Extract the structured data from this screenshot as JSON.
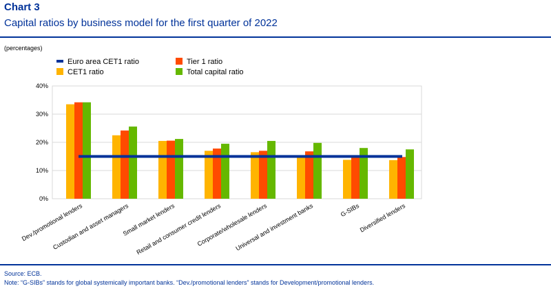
{
  "header": {
    "chart_label": "Chart 3",
    "title": "Capital ratios by business model for the first quarter of 2022",
    "units": "(percentages)"
  },
  "footer": {
    "source": "Source: ECB.",
    "note": "Note: “G-SIBs” stands for global systemically important banks. “Dev./promotional lenders” stands for Development/promotional lenders."
  },
  "colors": {
    "cet1": "#FFB400",
    "tier1": "#FF4B00",
    "total": "#65B800",
    "euro_area": "#003299",
    "brand": "#003299"
  },
  "chart_data": {
    "type": "bar",
    "categories": [
      "Dev./promotional lenders",
      "Custodian and asset managers",
      "Small market lenders",
      "Retail and consumer credit lenders",
      "Corporate/wholesale lenders",
      "Universal and investment banks",
      "G-SIBs",
      "Diversified lenders"
    ],
    "series": [
      {
        "name": "CET1 ratio",
        "color": "#FFB400",
        "values": [
          33.5,
          22.5,
          20.5,
          17.0,
          16.5,
          15.0,
          13.8,
          13.7
        ]
      },
      {
        "name": "Tier 1 ratio",
        "color": "#FF4B00",
        "values": [
          34.2,
          24.2,
          20.6,
          17.8,
          17.0,
          16.8,
          15.1,
          14.8
        ]
      },
      {
        "name": "Total capital ratio",
        "color": "#65B800",
        "values": [
          34.2,
          25.6,
          21.2,
          19.5,
          20.5,
          19.8,
          18.0,
          17.5
        ]
      }
    ],
    "reference_line": {
      "name": "Euro area CET1 ratio",
      "color": "#003299",
      "value": 15.0
    },
    "y_ticks": [
      "0%",
      "10%",
      "20%",
      "30%",
      "40%"
    ],
    "ylim": [
      0,
      40
    ],
    "grid": true,
    "legend": "top-left"
  }
}
